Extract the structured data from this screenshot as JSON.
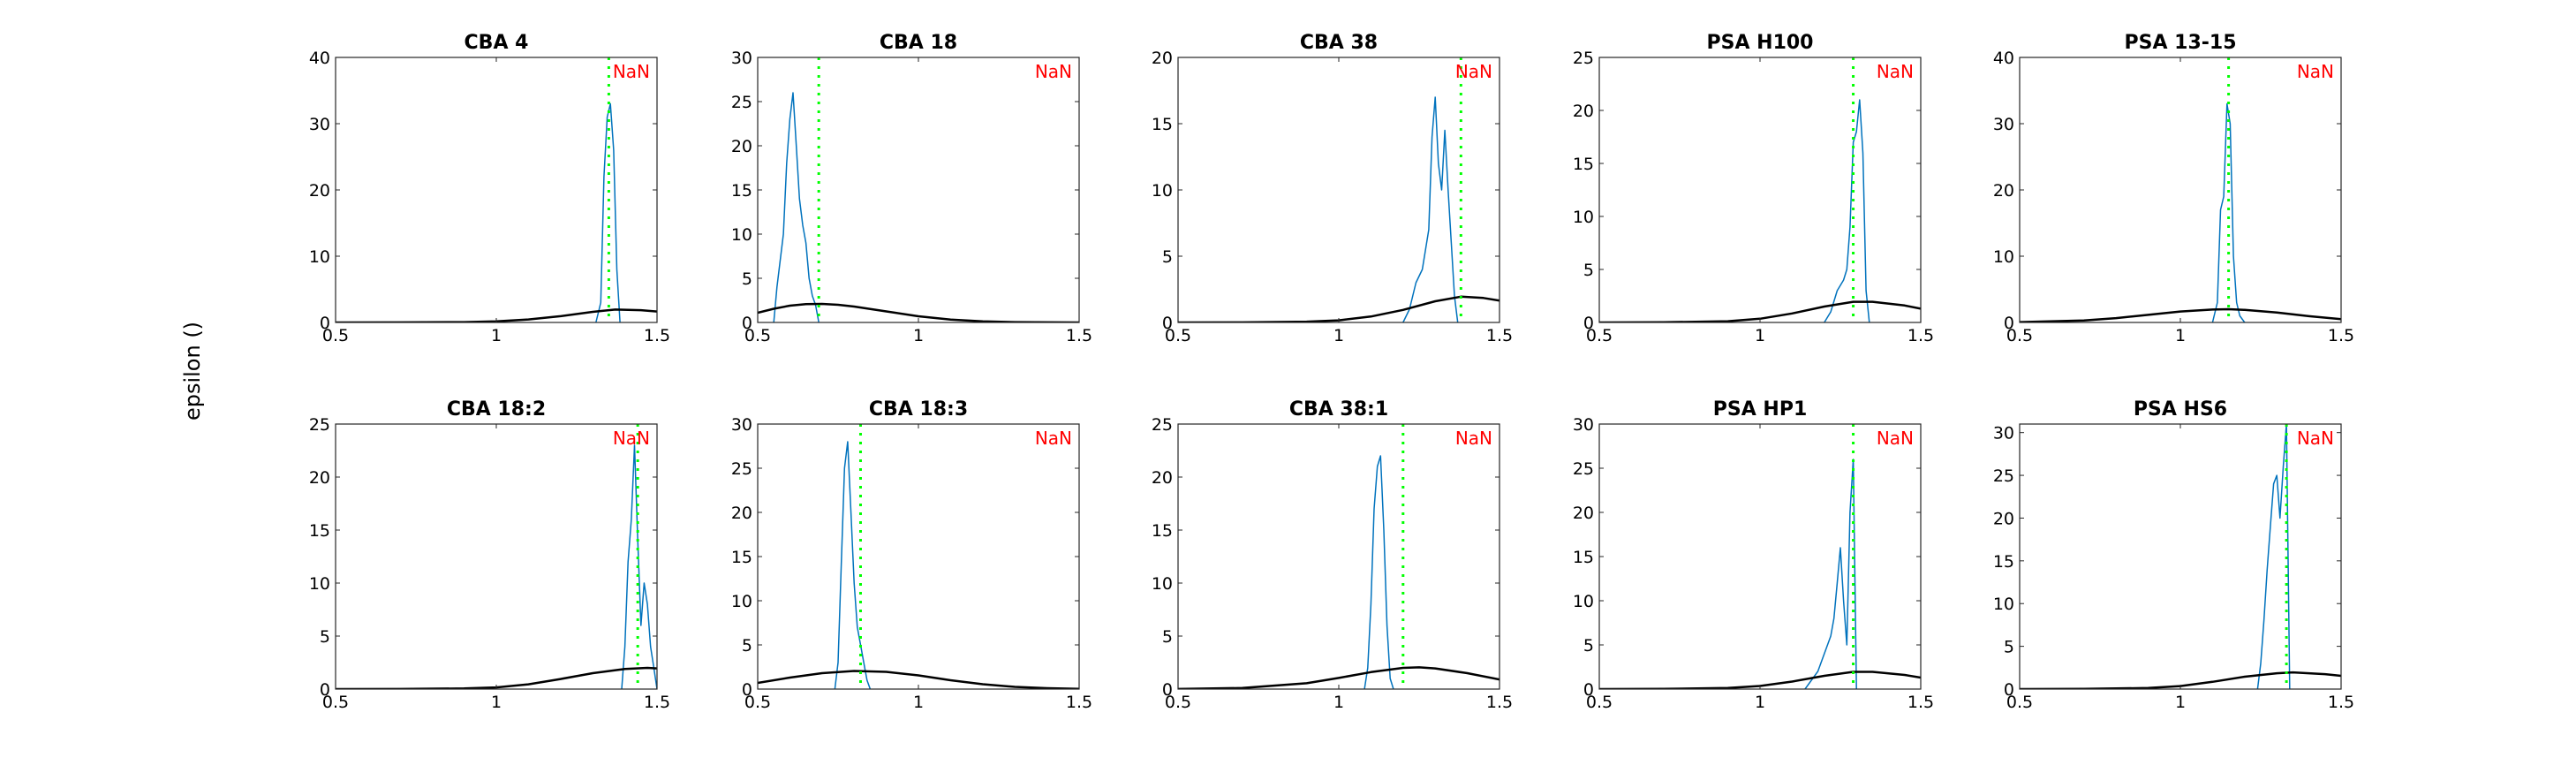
{
  "figure": {
    "ylabel": "epsilon ()",
    "colors": {
      "histogram": "#0072BD",
      "prior": "#000000",
      "estimate": "#00FF00",
      "annotation": "#FF0000",
      "axes": "#262626",
      "background": "#FFFFFF"
    }
  },
  "chart_data": [
    {
      "type": "line",
      "title": "CBA 4",
      "annotation": "NaN",
      "xlim": [
        0.5,
        1.5
      ],
      "ylim": [
        0,
        40
      ],
      "xticks": [
        0.5,
        1,
        1.5
      ],
      "xtick_labels": [
        "0.5",
        "1",
        "1.5"
      ],
      "yticks": [
        0,
        10,
        20,
        30,
        40
      ],
      "ytick_labels": [
        "0",
        "10",
        "20",
        "30",
        "40"
      ],
      "estimate_x": 1.35,
      "series": [
        {
          "x": [
            1.31,
            1.325,
            1.335,
            1.345,
            1.355,
            1.365,
            1.375,
            1.385
          ],
          "y": [
            0,
            3,
            22,
            31,
            33,
            26,
            8,
            0
          ]
        },
        {
          "x": [
            0.5,
            0.7,
            0.9,
            1.0,
            1.1,
            1.2,
            1.3,
            1.37,
            1.45,
            1.5
          ],
          "y": [
            0,
            0.01,
            0.06,
            0.16,
            0.45,
            0.95,
            1.6,
            1.95,
            1.85,
            1.65
          ]
        }
      ]
    },
    {
      "type": "line",
      "title": "CBA 18",
      "annotation": "NaN",
      "xlim": [
        0.5,
        1.5
      ],
      "ylim": [
        0,
        30
      ],
      "xticks": [
        0.5,
        1,
        1.5
      ],
      "xtick_labels": [
        "0.5",
        "1",
        "1.5"
      ],
      "yticks": [
        0,
        5,
        10,
        15,
        20,
        25,
        30
      ],
      "ytick_labels": [
        "0",
        "5",
        "10",
        "15",
        "20",
        "25",
        "30"
      ],
      "estimate_x": 0.69,
      "series": [
        {
          "x": [
            0.55,
            0.56,
            0.58,
            0.59,
            0.6,
            0.61,
            0.62,
            0.63,
            0.64,
            0.65,
            0.66,
            0.67,
            0.68,
            0.69
          ],
          "y": [
            0,
            4,
            10,
            18,
            23,
            26,
            20,
            14,
            11,
            9,
            5,
            3,
            2,
            0
          ]
        },
        {
          "x": [
            0.5,
            0.55,
            0.6,
            0.65,
            0.7,
            0.75,
            0.8,
            0.9,
            1.0,
            1.1,
            1.2,
            1.3,
            1.5
          ],
          "y": [
            1.1,
            1.55,
            1.9,
            2.08,
            2.1,
            2.0,
            1.8,
            1.25,
            0.7,
            0.32,
            0.12,
            0.04,
            0
          ]
        }
      ]
    },
    {
      "type": "line",
      "title": "CBA 38",
      "annotation": "NaN",
      "xlim": [
        0.5,
        1.5
      ],
      "ylim": [
        0,
        20
      ],
      "xticks": [
        0.5,
        1,
        1.5
      ],
      "xtick_labels": [
        "0.5",
        "1",
        "1.5"
      ],
      "yticks": [
        0,
        5,
        10,
        15,
        20
      ],
      "ytick_labels": [
        "0",
        "5",
        "10",
        "15",
        "20"
      ],
      "estimate_x": 1.38,
      "series": [
        {
          "x": [
            1.2,
            1.22,
            1.24,
            1.26,
            1.28,
            1.29,
            1.3,
            1.31,
            1.32,
            1.33,
            1.34,
            1.35,
            1.36,
            1.37
          ],
          "y": [
            0,
            1,
            3,
            4,
            7,
            14,
            17,
            12,
            10,
            14.5,
            10,
            6,
            2,
            0
          ]
        },
        {
          "x": [
            0.5,
            0.7,
            0.9,
            1.0,
            1.1,
            1.2,
            1.3,
            1.38,
            1.45,
            1.5
          ],
          "y": [
            0,
            0.01,
            0.06,
            0.16,
            0.45,
            0.95,
            1.6,
            1.95,
            1.85,
            1.65
          ]
        }
      ]
    },
    {
      "type": "line",
      "title": "PSA H100",
      "annotation": "NaN",
      "xlim": [
        0.5,
        1.5
      ],
      "ylim": [
        0,
        25
      ],
      "xticks": [
        0.5,
        1,
        1.5
      ],
      "xtick_labels": [
        "0.5",
        "1",
        "1.5"
      ],
      "yticks": [
        0,
        5,
        10,
        15,
        20,
        25
      ],
      "ytick_labels": [
        "0",
        "5",
        "10",
        "15",
        "20",
        "25"
      ],
      "estimate_x": 1.29,
      "series": [
        {
          "x": [
            1.2,
            1.22,
            1.24,
            1.26,
            1.27,
            1.28,
            1.29,
            1.3,
            1.31,
            1.32,
            1.33,
            1.34
          ],
          "y": [
            0,
            1,
            3,
            4,
            5,
            9,
            17,
            18,
            21,
            16,
            3,
            0
          ]
        },
        {
          "x": [
            0.5,
            0.7,
            0.9,
            1.0,
            1.1,
            1.2,
            1.29,
            1.35,
            1.45,
            1.5
          ],
          "y": [
            0,
            0.02,
            0.12,
            0.35,
            0.85,
            1.5,
            1.95,
            1.95,
            1.6,
            1.3
          ]
        }
      ]
    },
    {
      "type": "line",
      "title": "PSA 13-15",
      "annotation": "NaN",
      "xlim": [
        0.5,
        1.5
      ],
      "ylim": [
        0,
        40
      ],
      "xticks": [
        0.5,
        1,
        1.5
      ],
      "xtick_labels": [
        "0.5",
        "1",
        "1.5"
      ],
      "yticks": [
        0,
        10,
        20,
        30,
        40
      ],
      "ytick_labels": [
        "0",
        "10",
        "20",
        "30",
        "40"
      ],
      "estimate_x": 1.15,
      "series": [
        {
          "x": [
            1.1,
            1.115,
            1.125,
            1.135,
            1.145,
            1.155,
            1.165,
            1.175,
            1.185,
            1.2
          ],
          "y": [
            0,
            3,
            17,
            19,
            33,
            30,
            10,
            3,
            1,
            0
          ]
        },
        {
          "x": [
            0.5,
            0.7,
            0.8,
            0.9,
            1.0,
            1.1,
            1.15,
            1.2,
            1.3,
            1.4,
            1.5
          ],
          "y": [
            0.05,
            0.3,
            0.65,
            1.15,
            1.65,
            1.95,
            2.0,
            1.9,
            1.5,
            0.95,
            0.5
          ]
        }
      ]
    },
    {
      "type": "line",
      "title": "CBA 18:2",
      "annotation": "NaN",
      "xlim": [
        0.5,
        1.5
      ],
      "ylim": [
        0,
        25
      ],
      "xticks": [
        0.5,
        1,
        1.5
      ],
      "xtick_labels": [
        "0.5",
        "1",
        "1.5"
      ],
      "yticks": [
        0,
        5,
        10,
        15,
        20,
        25
      ],
      "ytick_labels": [
        "0",
        "5",
        "10",
        "15",
        "20",
        "25"
      ],
      "estimate_x": 1.44,
      "series": [
        {
          "x": [
            1.39,
            1.4,
            1.41,
            1.42,
            1.43,
            1.44,
            1.45,
            1.46,
            1.47,
            1.48,
            1.49,
            1.5
          ],
          "y": [
            0,
            4,
            12,
            16,
            23,
            14,
            6,
            10,
            8,
            4,
            2,
            0
          ]
        },
        {
          "x": [
            0.5,
            0.7,
            0.9,
            1.0,
            1.1,
            1.2,
            1.3,
            1.4,
            1.47,
            1.5
          ],
          "y": [
            0,
            0.01,
            0.06,
            0.16,
            0.45,
            0.95,
            1.5,
            1.9,
            2.0,
            1.95
          ]
        }
      ]
    },
    {
      "type": "line",
      "title": "CBA 18:3",
      "annotation": "NaN",
      "xlim": [
        0.5,
        1.5
      ],
      "ylim": [
        0,
        30
      ],
      "xticks": [
        0.5,
        1,
        1.5
      ],
      "xtick_labels": [
        "0.5",
        "1",
        "1.5"
      ],
      "yticks": [
        0,
        5,
        10,
        15,
        20,
        25,
        30
      ],
      "ytick_labels": [
        "0",
        "5",
        "10",
        "15",
        "20",
        "25",
        "30"
      ],
      "estimate_x": 0.82,
      "series": [
        {
          "x": [
            0.74,
            0.75,
            0.76,
            0.77,
            0.78,
            0.79,
            0.8,
            0.81,
            0.82,
            0.83,
            0.84,
            0.85
          ],
          "y": [
            0,
            3,
            14,
            25,
            28,
            20,
            12,
            7,
            5,
            3,
            1,
            0
          ]
        },
        {
          "x": [
            0.5,
            0.6,
            0.7,
            0.8,
            0.9,
            1.0,
            1.1,
            1.2,
            1.3,
            1.4,
            1.5
          ],
          "y": [
            0.7,
            1.3,
            1.8,
            2.05,
            1.95,
            1.55,
            1.0,
            0.55,
            0.25,
            0.1,
            0.03
          ]
        }
      ]
    },
    {
      "type": "line",
      "title": "CBA 38:1",
      "annotation": "NaN",
      "xlim": [
        0.5,
        1.5
      ],
      "ylim": [
        0,
        25
      ],
      "xticks": [
        0.5,
        1,
        1.5
      ],
      "xtick_labels": [
        "0.5",
        "1",
        "1.5"
      ],
      "yticks": [
        0,
        5,
        10,
        15,
        20,
        25
      ],
      "ytick_labels": [
        "0",
        "5",
        "10",
        "15",
        "20",
        "25"
      ],
      "estimate_x": 1.2,
      "series": [
        {
          "x": [
            1.08,
            1.09,
            1.1,
            1.11,
            1.12,
            1.13,
            1.14,
            1.15,
            1.16,
            1.17
          ],
          "y": [
            0,
            2,
            8,
            17,
            21,
            22,
            15,
            6,
            1,
            0
          ]
        },
        {
          "x": [
            0.5,
            0.7,
            0.9,
            1.0,
            1.1,
            1.2,
            1.25,
            1.3,
            1.4,
            1.5
          ],
          "y": [
            0.01,
            0.1,
            0.55,
            1.05,
            1.6,
            2.0,
            2.05,
            1.95,
            1.5,
            0.9
          ]
        }
      ]
    },
    {
      "type": "line",
      "title": "PSA HP1",
      "annotation": "NaN",
      "xlim": [
        0.5,
        1.5
      ],
      "ylim": [
        0,
        30
      ],
      "xticks": [
        0.5,
        1,
        1.5
      ],
      "xtick_labels": [
        "0.5",
        "1",
        "1.5"
      ],
      "yticks": [
        0,
        5,
        10,
        15,
        20,
        25,
        30
      ],
      "ytick_labels": [
        "0",
        "5",
        "10",
        "15",
        "20",
        "25",
        "30"
      ],
      "estimate_x": 1.29,
      "series": [
        {
          "x": [
            1.14,
            1.16,
            1.18,
            1.2,
            1.22,
            1.23,
            1.24,
            1.25,
            1.26,
            1.27,
            1.28,
            1.29,
            1.3
          ],
          "y": [
            0,
            1,
            2,
            4,
            6,
            8,
            12,
            16,
            10,
            5,
            20,
            26,
            0
          ]
        },
        {
          "x": [
            0.5,
            0.7,
            0.9,
            1.0,
            1.1,
            1.2,
            1.29,
            1.35,
            1.45,
            1.5
          ],
          "y": [
            0,
            0.02,
            0.12,
            0.35,
            0.85,
            1.5,
            1.95,
            1.95,
            1.6,
            1.3
          ]
        }
      ]
    },
    {
      "type": "line",
      "title": "PSA HS6",
      "annotation": "NaN",
      "xlim": [
        0.5,
        1.5
      ],
      "ylim": [
        0,
        31
      ],
      "xticks": [
        0.5,
        1,
        1.5
      ],
      "xtick_labels": [
        "0.5",
        "1",
        "1.5"
      ],
      "yticks": [
        0,
        5,
        10,
        15,
        20,
        25,
        30
      ],
      "ytick_labels": [
        "0",
        "5",
        "10",
        "15",
        "20",
        "25",
        "30"
      ],
      "estimate_x": 1.33,
      "series": [
        {
          "x": [
            1.24,
            1.25,
            1.26,
            1.27,
            1.28,
            1.29,
            1.3,
            1.31,
            1.32,
            1.33,
            1.34
          ],
          "y": [
            0,
            3,
            8,
            14,
            19,
            24,
            25,
            20,
            26,
            31,
            0
          ]
        },
        {
          "x": [
            0.5,
            0.7,
            0.9,
            1.0,
            1.1,
            1.2,
            1.3,
            1.35,
            1.45,
            1.5
          ],
          "y": [
            0,
            0.02,
            0.12,
            0.35,
            0.85,
            1.45,
            1.85,
            1.95,
            1.75,
            1.55
          ]
        }
      ]
    }
  ]
}
